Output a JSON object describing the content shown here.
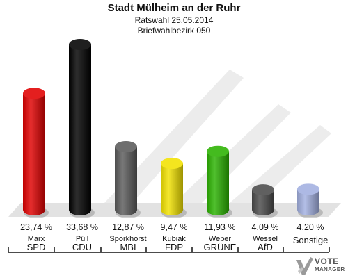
{
  "header": {
    "title": "Stadt Mülheim an der Ruhr",
    "subtitle_1": "Ratswahl 25.05.2014",
    "subtitle_2": "Briefwahlbezirk 050"
  },
  "chart_data": {
    "type": "bar",
    "title": "Stadt Mülheim an der Ruhr",
    "subtitle": [
      "Ratswahl 25.05.2014",
      "Briefwahlbezirk 050"
    ],
    "unit": "%",
    "grid": false,
    "legend": "none",
    "categories": [
      "SPD",
      "CDU",
      "MBI",
      "FDP",
      "GRÜNE",
      "AfD",
      "Sonstige"
    ],
    "candidates": [
      "Marx",
      "Püll",
      "Sporkhorst",
      "Kubiak",
      "Weber",
      "Wessel",
      ""
    ],
    "values": [
      23.74,
      33.68,
      12.87,
      9.47,
      11.93,
      4.09,
      4.2
    ],
    "value_labels": [
      "23,74 %",
      "33,68 %",
      "12,87 %",
      "9,47 %",
      "11,93 %",
      "4,09 %",
      "4,20 %"
    ],
    "colors": [
      "#e00000",
      "#000000",
      "#5a5a5a",
      "#f2e200",
      "#2ab200",
      "#4a4a4a",
      "#a2b0e0"
    ]
  },
  "logo": {
    "line1": "VOTE",
    "line2": "MANAGER"
  }
}
